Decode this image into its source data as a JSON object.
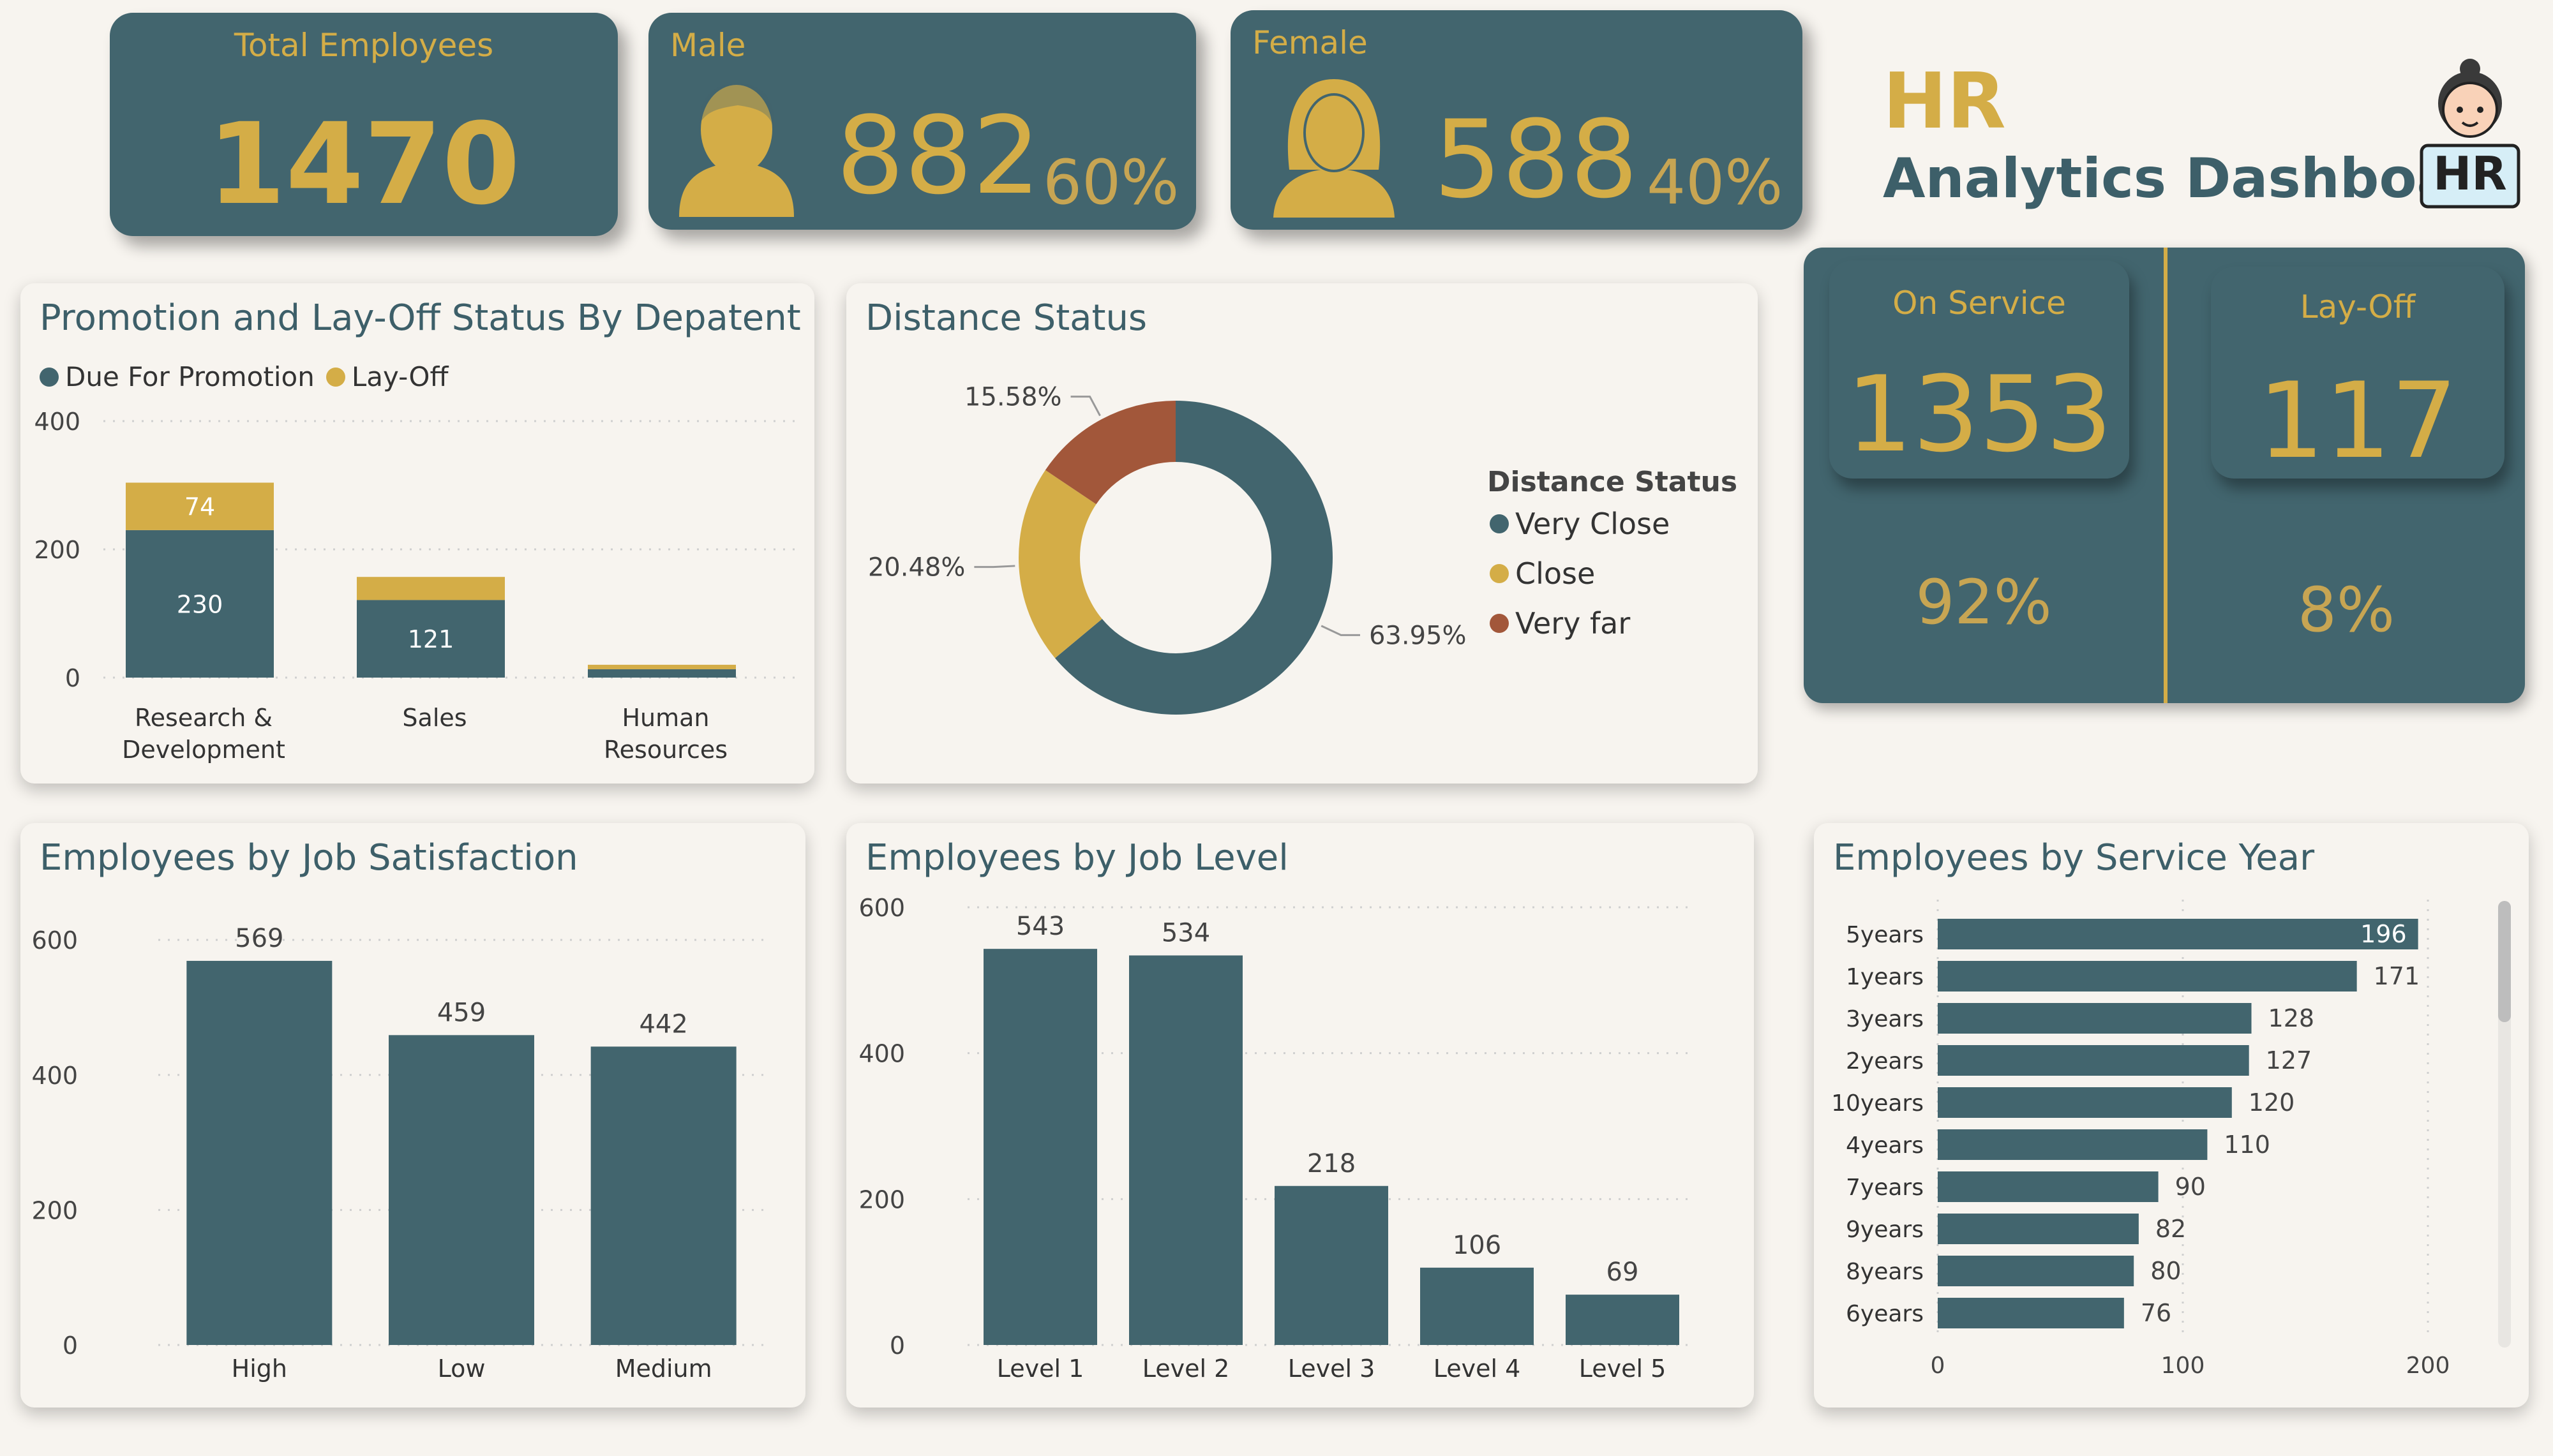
{
  "header": {
    "title_line1": "HR",
    "title_line2": "Analytics Dashboard",
    "logo_badge": "HR"
  },
  "kpis": {
    "total": {
      "label": "Total Employees",
      "value": "1470"
    },
    "male": {
      "label": "Male",
      "value": "882",
      "percent": "60%"
    },
    "female": {
      "label": "Female",
      "value": "588",
      "percent": "40%"
    }
  },
  "service_panel": {
    "on_service": {
      "label": "On Service",
      "value": "1353",
      "percent": "92%"
    },
    "lay_off": {
      "label": "Lay-Off",
      "value": "117",
      "percent": "8%"
    }
  },
  "colors": {
    "teal": "#42656e",
    "gold": "#d4ad47",
    "rust": "#a2573a"
  },
  "promotion_chart": {
    "title": "Promotion and Lay-Off Status By Depatent",
    "chart_data": {
      "type": "bar",
      "stacked": true,
      "categories": [
        "Research & Development",
        "Sales",
        "Human Resources"
      ],
      "category_lines": [
        [
          "Research &",
          "Development"
        ],
        [
          "Sales"
        ],
        [
          "Human",
          "Resources"
        ]
      ],
      "series": [
        {
          "name": "Due For Promotion",
          "color": "#42656e",
          "values": [
            230,
            121,
            13
          ],
          "labels": [
            "230",
            "121",
            ""
          ]
        },
        {
          "name": "Lay-Off",
          "color": "#d4ad47",
          "values": [
            74,
            36,
            7
          ],
          "labels": [
            "74",
            "",
            ""
          ]
        }
      ],
      "yticks": [
        0,
        200,
        400
      ],
      "ylim": [
        0,
        400
      ]
    }
  },
  "distance_chart": {
    "title": "Distance Status",
    "legend_title": "Distance Status",
    "chart_data": {
      "type": "pie",
      "donut": true,
      "slices": [
        {
          "name": "Very Close",
          "value": 63.95,
          "label": "63.95%",
          "color": "#42656e"
        },
        {
          "name": "Close",
          "value": 20.48,
          "label": "20.48%",
          "color": "#d4ad47"
        },
        {
          "name": "Very far",
          "value": 15.58,
          "label": "15.58%",
          "color": "#a2573a"
        }
      ]
    }
  },
  "job_satisfaction_chart": {
    "title": "Employees by Job Satisfaction",
    "chart_data": {
      "type": "bar",
      "categories": [
        "High",
        "Low",
        "Medium"
      ],
      "values": [
        569,
        459,
        442
      ],
      "yticks": [
        0,
        200,
        400,
        600
      ],
      "ylim": [
        0,
        620
      ]
    }
  },
  "job_level_chart": {
    "title": "Employees by Job Level",
    "chart_data": {
      "type": "bar",
      "categories": [
        "Level 1",
        "Level 2",
        "Level 3",
        "Level 4",
        "Level 5"
      ],
      "values": [
        543,
        534,
        218,
        106,
        69
      ],
      "yticks": [
        0,
        200,
        400,
        600
      ],
      "ylim": [
        0,
        600
      ]
    }
  },
  "service_year_chart": {
    "title": "Employees by Service Year",
    "chart_data": {
      "type": "bar",
      "orientation": "horizontal",
      "categories": [
        "5years",
        "1years",
        "3years",
        "2years",
        "10years",
        "4years",
        "7years",
        "9years",
        "8years",
        "6years"
      ],
      "values": [
        196,
        171,
        128,
        127,
        120,
        110,
        90,
        82,
        80,
        76
      ],
      "xticks": [
        0,
        100,
        200
      ],
      "xlim": [
        0,
        200
      ]
    }
  }
}
